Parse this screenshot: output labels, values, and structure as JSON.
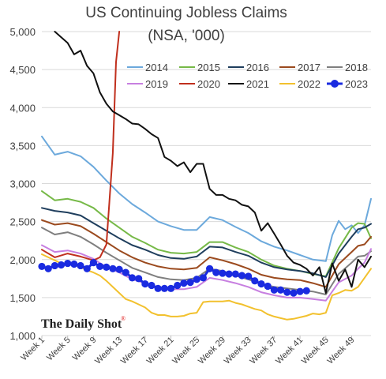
{
  "chart_data": {
    "type": "line",
    "title": "US Continuing Jobless Claims",
    "subtitle": "(NSA, '000)",
    "xlabel": "",
    "ylabel": "",
    "ylim": [
      1000,
      5000
    ],
    "yticks": [
      "1,000",
      "1,500",
      "2,000",
      "2,500",
      "3,000",
      "3,500",
      "4,000",
      "4,500",
      "5,000"
    ],
    "ytick_values": [
      1000,
      1500,
      2000,
      2500,
      3000,
      3500,
      4000,
      4500,
      5000
    ],
    "xticks": [
      "Week 1",
      "Week 5",
      "Week 9",
      "Week 13",
      "Week 17",
      "Week 21",
      "Week 25",
      "Week 29",
      "Week 33",
      "Week 37",
      "Week 41",
      "Week 45",
      "Week 49"
    ],
    "xtick_weeks": [
      1,
      5,
      9,
      13,
      17,
      21,
      25,
      29,
      33,
      37,
      41,
      45,
      49
    ],
    "xlim": [
      1,
      52
    ],
    "grid": true,
    "legend_position": "top-right",
    "series": [
      {
        "name": "2014",
        "color": "#6ca9dc",
        "width": 2,
        "marker": false,
        "x": [
          1,
          3,
          5,
          7,
          9,
          11,
          13,
          15,
          17,
          19,
          21,
          23,
          25,
          27,
          29,
          31,
          33,
          35,
          37,
          39,
          41,
          43,
          45,
          46,
          47,
          48,
          49,
          50,
          51,
          52
        ],
        "y": [
          3620,
          3380,
          3420,
          3360,
          3220,
          3040,
          2870,
          2730,
          2620,
          2500,
          2440,
          2390,
          2390,
          2560,
          2520,
          2430,
          2350,
          2240,
          2170,
          2120,
          2060,
          2000,
          1980,
          2320,
          2510,
          2400,
          2450,
          2350,
          2450,
          2800
        ]
      },
      {
        "name": "2015",
        "color": "#76b947",
        "width": 2,
        "marker": false,
        "x": [
          1,
          3,
          5,
          7,
          9,
          11,
          13,
          15,
          17,
          19,
          21,
          23,
          25,
          27,
          29,
          31,
          33,
          35,
          37,
          39,
          41,
          43,
          45,
          47,
          49,
          50,
          51,
          52
        ],
        "y": [
          2900,
          2780,
          2800,
          2760,
          2680,
          2540,
          2420,
          2300,
          2220,
          2130,
          2090,
          2080,
          2100,
          2230,
          2230,
          2160,
          2100,
          2000,
          1920,
          1880,
          1850,
          1810,
          1780,
          2150,
          2420,
          2480,
          2470,
          2280
        ]
      },
      {
        "name": "2016",
        "color": "#1f3e5d",
        "width": 2,
        "marker": false,
        "x": [
          1,
          3,
          5,
          7,
          9,
          11,
          13,
          15,
          17,
          19,
          21,
          23,
          25,
          27,
          29,
          31,
          33,
          35,
          37,
          39,
          41,
          43,
          45,
          47,
          49,
          50,
          51,
          52
        ],
        "y": [
          2680,
          2640,
          2620,
          2580,
          2480,
          2380,
          2280,
          2190,
          2130,
          2060,
          2020,
          2010,
          2040,
          2170,
          2160,
          2100,
          2050,
          1960,
          1900,
          1870,
          1850,
          1820,
          1770,
          2080,
          2300,
          2400,
          2420,
          2470
        ]
      },
      {
        "name": "2017",
        "color": "#9b4a1e",
        "width": 2,
        "marker": false,
        "x": [
          1,
          3,
          5,
          7,
          9,
          11,
          13,
          15,
          17,
          19,
          21,
          23,
          25,
          27,
          29,
          31,
          33,
          35,
          37,
          39,
          41,
          43,
          45,
          47,
          49,
          50,
          51,
          52
        ],
        "y": [
          2520,
          2460,
          2480,
          2440,
          2340,
          2230,
          2120,
          2030,
          1960,
          1910,
          1880,
          1870,
          1890,
          2030,
          1990,
          1940,
          1880,
          1800,
          1760,
          1740,
          1730,
          1690,
          1640,
          1940,
          2100,
          2180,
          2200,
          2300
        ]
      },
      {
        "name": "2018",
        "color": "#7f7f7f",
        "width": 2,
        "marker": false,
        "x": [
          1,
          3,
          5,
          7,
          9,
          11,
          13,
          15,
          17,
          19,
          21,
          23,
          25,
          27,
          29,
          31,
          33,
          35,
          37,
          39,
          41,
          43,
          45,
          47,
          49,
          50,
          51,
          52
        ],
        "y": [
          2420,
          2330,
          2360,
          2300,
          2200,
          2090,
          1990,
          1890,
          1830,
          1770,
          1740,
          1730,
          1760,
          1880,
          1850,
          1790,
          1740,
          1680,
          1640,
          1620,
          1600,
          1580,
          1540,
          1810,
          1960,
          2040,
          2050,
          2110
        ]
      },
      {
        "name": "2019",
        "color": "#c77fe0",
        "width": 2,
        "marker": false,
        "x": [
          1,
          3,
          5,
          7,
          9,
          11,
          13,
          15,
          17,
          19,
          21,
          23,
          25,
          27,
          29,
          31,
          33,
          35,
          37,
          39,
          41,
          43,
          45,
          47,
          49,
          50,
          51,
          52
        ],
        "y": [
          2190,
          2100,
          2120,
          2080,
          2010,
          1900,
          1830,
          1740,
          1690,
          1640,
          1610,
          1610,
          1640,
          1760,
          1730,
          1690,
          1640,
          1570,
          1530,
          1500,
          1500,
          1480,
          1460,
          1700,
          1790,
          1880,
          1960,
          2140
        ]
      },
      {
        "name": "2020",
        "color": "#c02f1d",
        "width": 2,
        "marker": false,
        "x": [
          1,
          3,
          5,
          7,
          9,
          10,
          11,
          12,
          12.5,
          13
        ],
        "y": [
          2130,
          2030,
          2080,
          2040,
          1990,
          2030,
          2200,
          3400,
          4600,
          5000
        ]
      },
      {
        "name": "2021",
        "color": "#111111",
        "width": 2,
        "marker": false,
        "x": [
          3,
          5,
          6,
          7,
          8,
          9,
          10,
          11,
          12,
          13,
          14,
          15,
          16,
          17,
          18,
          19,
          20,
          21,
          22,
          23,
          24,
          25,
          26,
          27,
          28,
          29,
          30,
          31,
          32,
          33,
          34,
          35,
          36,
          37,
          38,
          39,
          40,
          41,
          42,
          43,
          44,
          45,
          46,
          47,
          48,
          49,
          50,
          51,
          52
        ],
        "y": [
          5000,
          4850,
          4700,
          4750,
          4550,
          4450,
          4200,
          4050,
          3950,
          3900,
          3850,
          3790,
          3780,
          3720,
          3650,
          3600,
          3350,
          3300,
          3230,
          3280,
          3150,
          3260,
          3260,
          2930,
          2850,
          2850,
          2800,
          2780,
          2720,
          2700,
          2620,
          2380,
          2480,
          2340,
          2200,
          2050,
          1960,
          1930,
          1880,
          1790,
          1900,
          1560,
          1950,
          1720,
          1870,
          1640,
          2000,
          1900,
          2040
        ]
      },
      {
        "name": "2022",
        "color": "#f2c12e",
        "width": 2,
        "marker": false,
        "x": [
          1,
          2,
          3,
          4,
          5,
          6,
          7,
          8,
          9,
          10,
          11,
          12,
          13,
          14,
          15,
          16,
          17,
          18,
          19,
          20,
          21,
          22,
          23,
          24,
          25,
          26,
          27,
          28,
          29,
          30,
          31,
          32,
          33,
          34,
          35,
          36,
          37,
          38,
          39,
          40,
          41,
          42,
          43,
          44,
          45,
          46,
          47,
          48,
          49,
          50,
          51,
          52
        ],
        "y": [
          2070,
          2030,
          1990,
          1950,
          1950,
          1930,
          1900,
          1860,
          1830,
          1790,
          1720,
          1640,
          1560,
          1480,
          1450,
          1410,
          1370,
          1300,
          1270,
          1270,
          1250,
          1250,
          1260,
          1290,
          1300,
          1440,
          1450,
          1450,
          1450,
          1460,
          1430,
          1410,
          1380,
          1350,
          1330,
          1280,
          1250,
          1230,
          1210,
          1220,
          1240,
          1260,
          1290,
          1280,
          1300,
          1530,
          1560,
          1600,
          1590,
          1640,
          1760,
          1880
        ]
      },
      {
        "name": "2023",
        "color": "#1a2be0",
        "width": 3,
        "marker": true,
        "x": [
          1,
          2,
          3,
          4,
          5,
          6,
          7,
          8,
          9,
          10,
          11,
          12,
          13,
          14,
          15,
          16,
          17,
          18,
          19,
          20,
          21,
          22,
          23,
          24,
          25,
          26,
          27,
          28,
          29,
          30,
          31,
          32,
          33,
          34,
          35,
          36,
          37,
          38,
          39,
          40,
          41,
          42
        ],
        "y": [
          1910,
          1880,
          1920,
          1930,
          1950,
          1940,
          1920,
          1880,
          1960,
          1910,
          1900,
          1880,
          1870,
          1830,
          1760,
          1750,
          1680,
          1660,
          1620,
          1620,
          1620,
          1660,
          1690,
          1700,
          1740,
          1760,
          1880,
          1830,
          1820,
          1810,
          1810,
          1790,
          1780,
          1720,
          1680,
          1650,
          1600,
          1600,
          1570,
          1560,
          1580,
          1590
        ]
      }
    ]
  },
  "brand": {
    "name": "The Daily Shot",
    "mark": "®"
  }
}
